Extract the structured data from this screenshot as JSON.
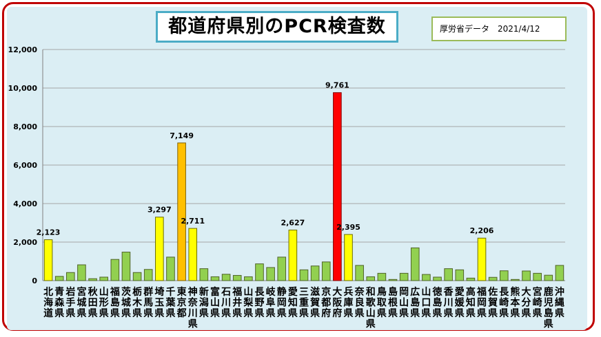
{
  "title": "都道府県別のPCR検査数",
  "source": "厚労省データ",
  "date": "2021/4/12",
  "colors": {
    "normal": "#92d050",
    "highlight_yellow": "#ffff00",
    "highlight_orange": "#ffc000",
    "highlight_red": "#ff0000",
    "bar_border_green": "#4f6228",
    "bar_border_yellow": "#6b6b00",
    "frame": "#c00000",
    "plot_bg": "#dbeef4"
  },
  "chart_data": {
    "type": "bar",
    "title": "都道府県別のPCR検査数",
    "ylim": [
      0,
      12000
    ],
    "yticks": [
      "0",
      "2,000",
      "4,000",
      "6,000",
      "8,000",
      "10,000",
      "12,000"
    ],
    "ytick_values": [
      0,
      2000,
      4000,
      6000,
      8000,
      10000,
      12000
    ],
    "grid": true,
    "categories": [
      "北海道",
      "青森県",
      "岩手県",
      "宮城県",
      "秋田県",
      "山形県",
      "福島県",
      "茨城県",
      "栃木県",
      "群馬県",
      "埼玉県",
      "千葉県",
      "東京都",
      "神奈川県",
      "新潟県",
      "富山県",
      "石川県",
      "福井県",
      "山梨県",
      "長野県",
      "岐阜県",
      "静岡県",
      "愛知県",
      "三重県",
      "滋賀県",
      "京都府",
      "大阪府",
      "兵庫県",
      "奈良県",
      "和歌山県",
      "鳥取県",
      "島根県",
      "岡山県",
      "広島県",
      "山口県",
      "徳島県",
      "香川県",
      "愛媛県",
      "高知県",
      "福岡県",
      "佐賀県",
      "長崎県",
      "熊本県",
      "大分県",
      "宮崎県",
      "鹿児島県",
      "沖縄県"
    ],
    "values": [
      2123,
      220,
      420,
      820,
      100,
      180,
      1100,
      1480,
      420,
      580,
      3297,
      1220,
      7149,
      2711,
      620,
      200,
      330,
      270,
      200,
      870,
      680,
      1220,
      2627,
      560,
      760,
      970,
      9761,
      2395,
      790,
      200,
      380,
      60,
      380,
      1700,
      320,
      180,
      620,
      560,
      130,
      2206,
      170,
      510,
      60,
      500,
      380,
      280,
      790
    ],
    "highlight": {
      "0": "yellow",
      "10": "yellow",
      "12": "orange",
      "13": "yellow",
      "22": "yellow",
      "26": "red",
      "27": "yellow",
      "39": "yellow"
    },
    "data_labels": [
      {
        "index": 0,
        "label": "2,123"
      },
      {
        "index": 10,
        "label": "3,297"
      },
      {
        "index": 12,
        "label": "7,149"
      },
      {
        "index": 13,
        "label": "2,711"
      },
      {
        "index": 22,
        "label": "2,627"
      },
      {
        "index": 26,
        "label": "9,761"
      },
      {
        "index": 27,
        "label": "2,395"
      },
      {
        "index": 39,
        "label": "2,206"
      }
    ]
  }
}
